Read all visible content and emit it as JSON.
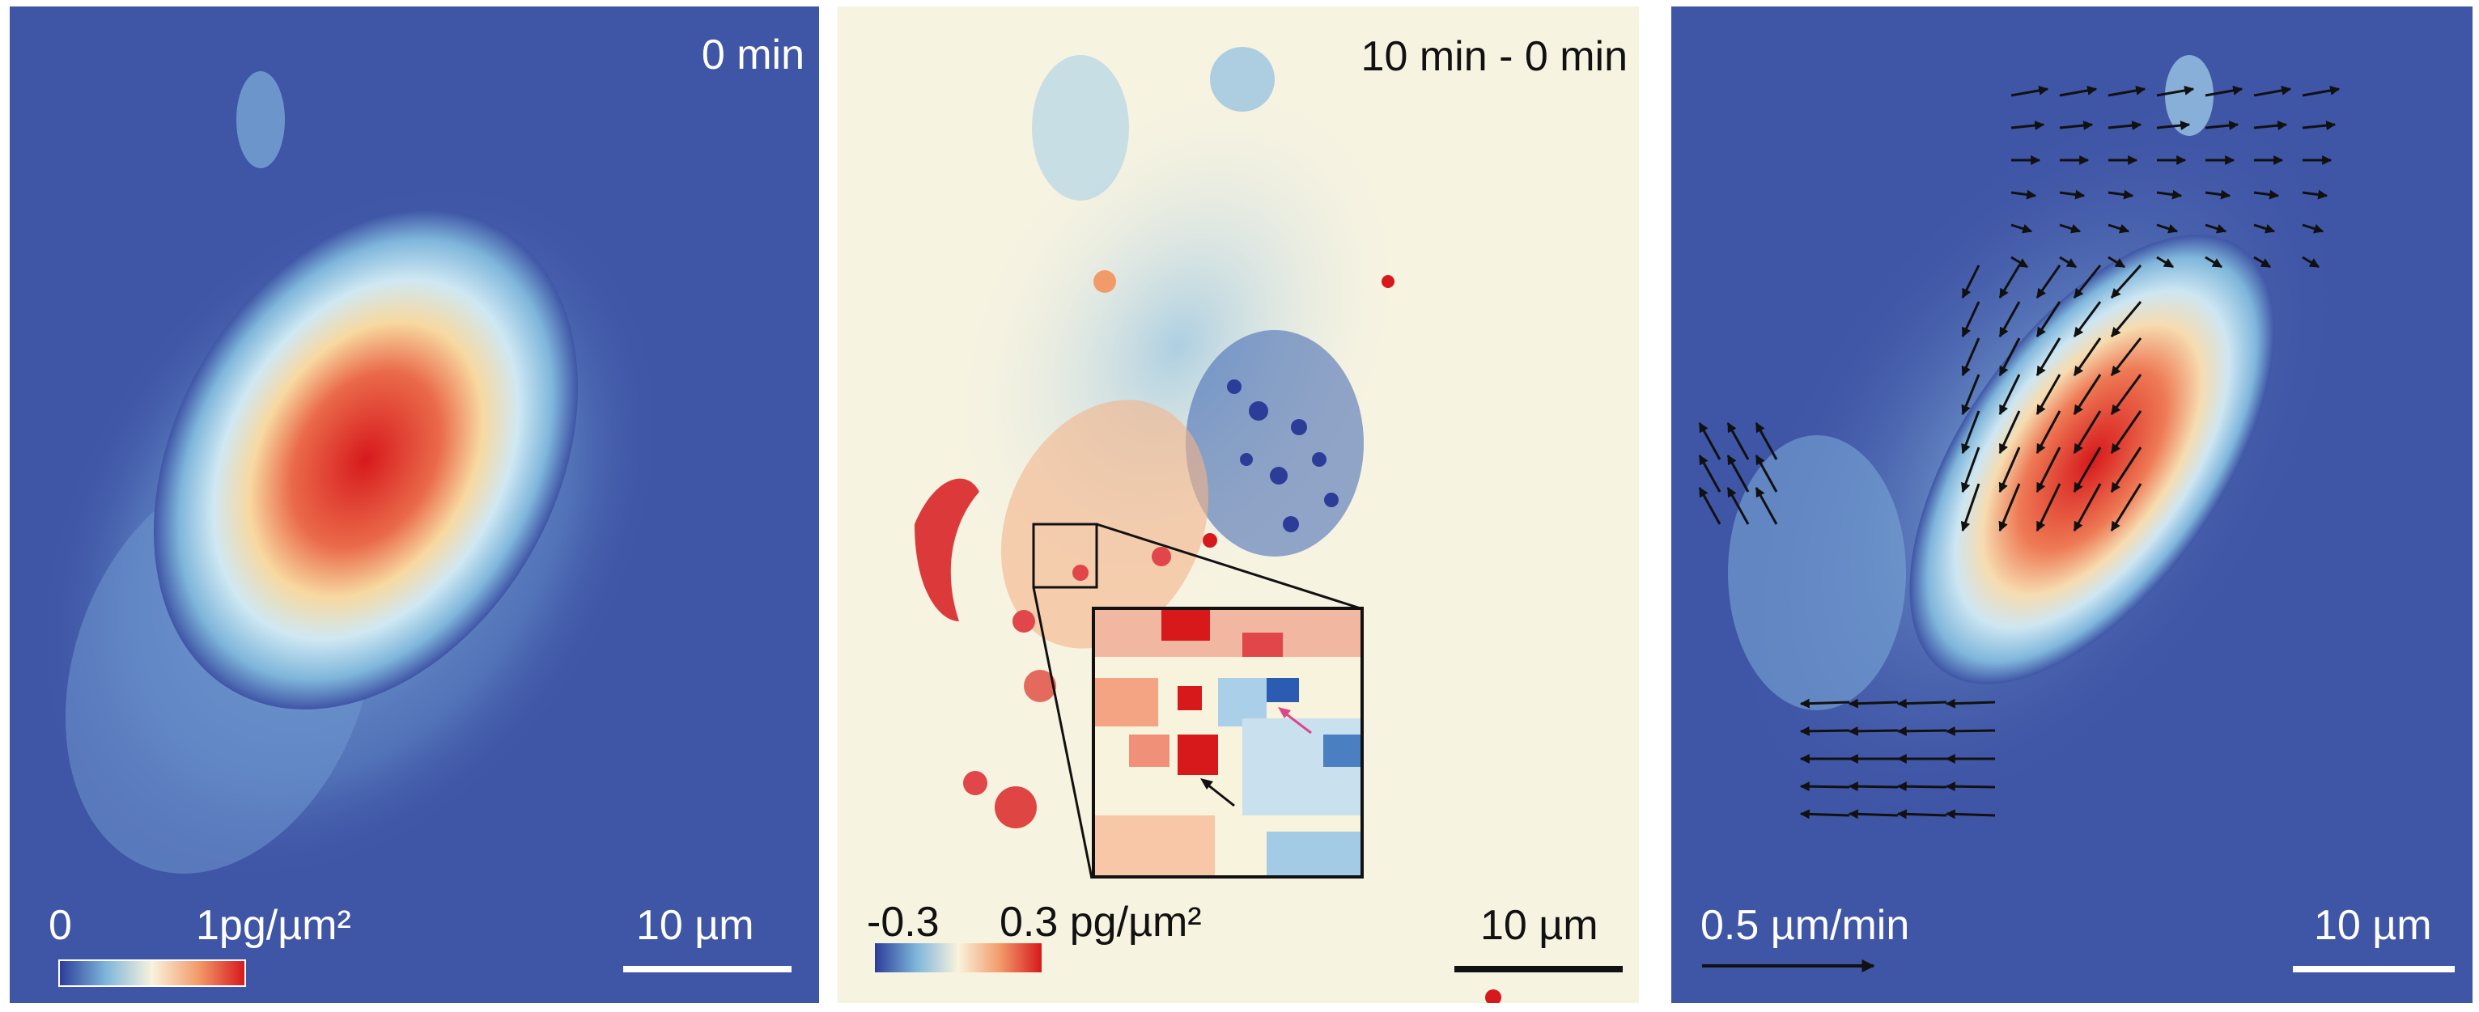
{
  "panels": [
    {
      "time_label": "0 min",
      "colorbar_min": "0",
      "colorbar_max": "1pg/µm²",
      "scalebar_label": "10 µm",
      "colors": {
        "background": "#3f55a6",
        "low": "#2c3d99",
        "high": "#d7191c"
      }
    },
    {
      "time_label": "10 min - 0 min",
      "colorbar_min": "-0.3",
      "colorbar_max": "0.3 pg/µm²",
      "scalebar_label": "10 µm",
      "colors": {
        "background": "#f7f3e1",
        "negative": "#2c3d99",
        "positive": "#d7191c"
      },
      "arrows": {
        "pink": "#e0448a",
        "black": "#111111"
      }
    },
    {
      "velocity_label": "0.5 µm/min",
      "scalebar_label": "10 µm",
      "colors": {
        "background": "#3f55a6",
        "arrow": "#111111"
      }
    }
  ]
}
